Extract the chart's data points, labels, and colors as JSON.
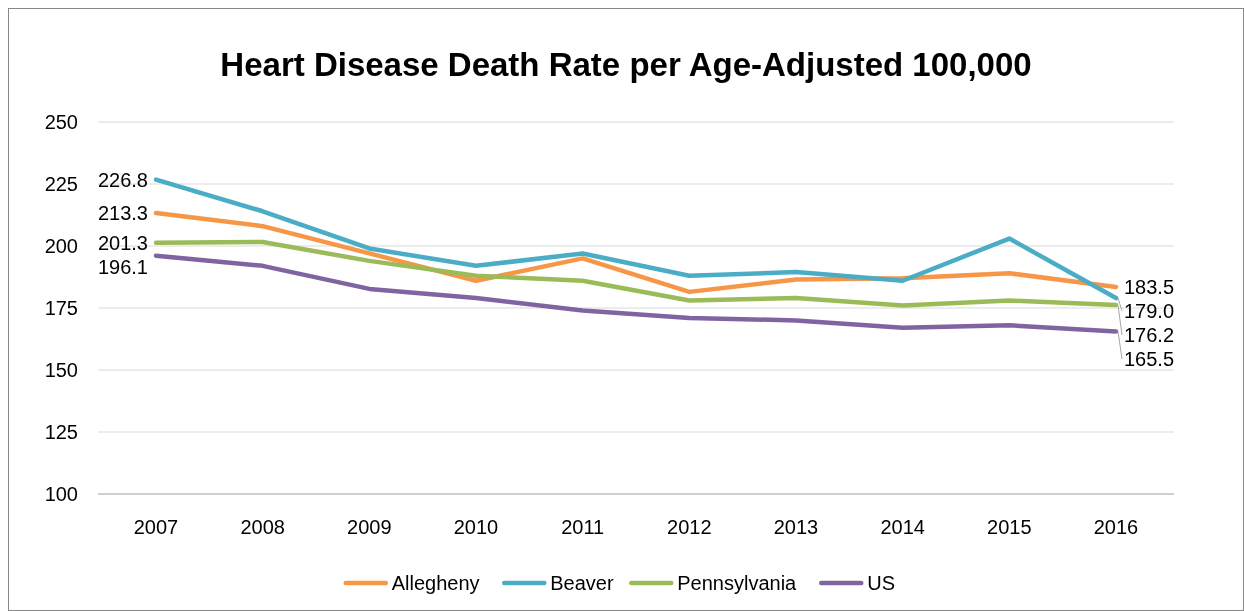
{
  "chart_data": {
    "type": "line",
    "title": "Heart Disease Death Rate per Age-Adjusted 100,000",
    "categories": [
      "2007",
      "2008",
      "2009",
      "2010",
      "2011",
      "2012",
      "2013",
      "2014",
      "2015",
      "2016"
    ],
    "series": [
      {
        "name": "Allegheny",
        "color": "#f79646",
        "values": [
          213.3,
          208,
          197,
          186,
          195,
          181.5,
          186.5,
          187,
          189,
          183.5
        ],
        "value_labels": [
          "213.3",
          null,
          null,
          null,
          null,
          null,
          null,
          null,
          null,
          "183.5"
        ]
      },
      {
        "name": "Beaver",
        "color": "#4bacc6",
        "values": [
          226.8,
          214,
          199,
          192,
          197,
          188,
          189.5,
          186,
          203,
          179.0
        ],
        "value_labels": [
          "226.8",
          null,
          null,
          null,
          null,
          null,
          null,
          null,
          null,
          "179.0"
        ]
      },
      {
        "name": "Pennsylvania",
        "color": "#9bbb59",
        "values": [
          201.3,
          201.6,
          194,
          188,
          186,
          178,
          179,
          176,
          178,
          176.2
        ],
        "value_labels": [
          "201.3",
          null,
          null,
          null,
          null,
          null,
          null,
          null,
          null,
          "176.2"
        ]
      },
      {
        "name": "US",
        "color": "#8064a2",
        "values": [
          196.1,
          192,
          182.7,
          179,
          174,
          171,
          170,
          167,
          168,
          165.5
        ],
        "value_labels": [
          "196.1",
          null,
          null,
          null,
          null,
          null,
          null,
          null,
          null,
          "165.5"
        ]
      }
    ],
    "ylim": [
      100,
      250
    ],
    "yticks": [
      100,
      125,
      150,
      175,
      200,
      225,
      250
    ],
    "grid": "y",
    "legend": "bottom",
    "marker": "none",
    "line_style": "solid"
  }
}
